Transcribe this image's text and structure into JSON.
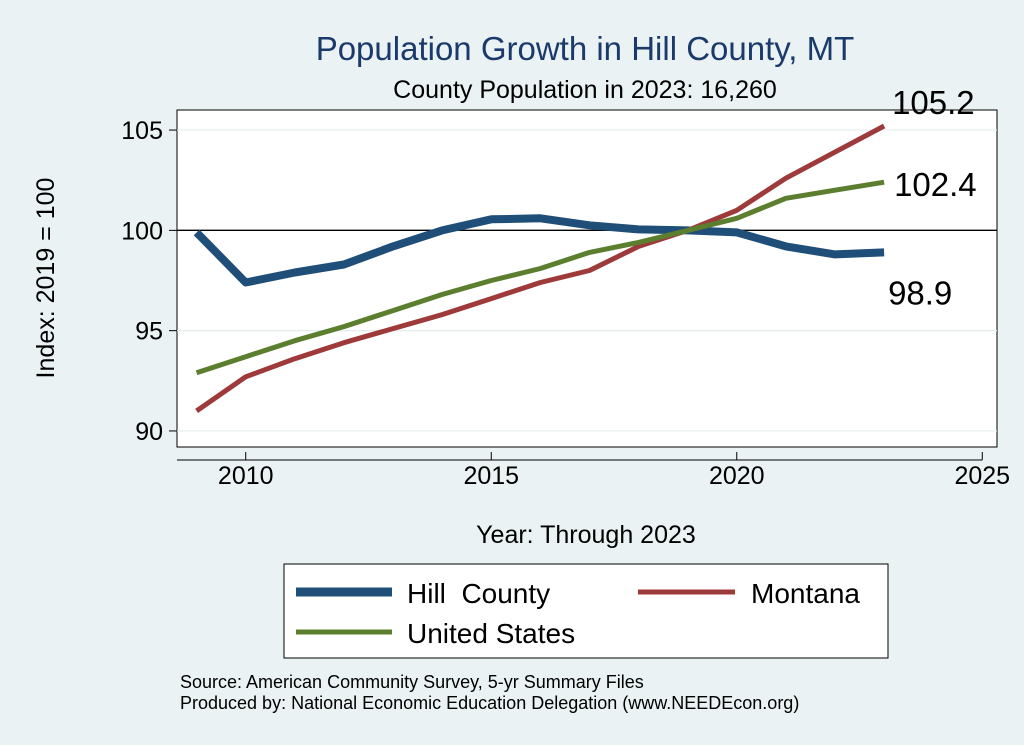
{
  "chart_data": {
    "type": "line",
    "title": "Population Growth in Hill County, MT",
    "subtitle": "County Population in 2023: 16,260",
    "xlabel": "Year: Through 2023",
    "ylabel": "Index: 2019 = 100",
    "xlim": [
      2008.6,
      2025.3
    ],
    "ylim": [
      89.2,
      106.0
    ],
    "xticks": [
      2010,
      2015,
      2020,
      2025
    ],
    "yticks": [
      90,
      95,
      100,
      105
    ],
    "reference_line": 100,
    "series": [
      {
        "name": "Hill County",
        "legend_label": "Hill  County",
        "color": "#1f4e79",
        "x": [
          2009,
          2010,
          2011,
          2012,
          2013,
          2014,
          2015,
          2016,
          2017,
          2018,
          2019,
          2020,
          2021,
          2022,
          2023
        ],
        "values": [
          99.9,
          97.4,
          97.9,
          98.3,
          99.2,
          100.0,
          100.55,
          100.6,
          100.25,
          100.05,
          100.0,
          99.9,
          99.2,
          98.8,
          98.9
        ],
        "end_label": "98.9"
      },
      {
        "name": "Montana",
        "legend_label": "Montana",
        "color": "#9e3a3a",
        "x": [
          2009,
          2010,
          2011,
          2012,
          2013,
          2014,
          2015,
          2016,
          2017,
          2018,
          2019,
          2020,
          2021,
          2022,
          2023
        ],
        "values": [
          91.0,
          92.7,
          93.6,
          94.4,
          95.1,
          95.8,
          96.6,
          97.4,
          98.0,
          99.2,
          100.0,
          101.0,
          102.6,
          103.9,
          105.2
        ],
        "end_label": "105.2"
      },
      {
        "name": "United States",
        "legend_label": "United States",
        "color": "#5b7f2e",
        "x": [
          2009,
          2010,
          2011,
          2012,
          2013,
          2014,
          2015,
          2016,
          2017,
          2018,
          2019,
          2020,
          2021,
          2022,
          2023
        ],
        "values": [
          92.9,
          93.7,
          94.5,
          95.2,
          96.0,
          96.8,
          97.5,
          98.1,
          98.9,
          99.4,
          100.0,
          100.6,
          101.6,
          102.0,
          102.4
        ],
        "end_label": "102.4"
      }
    ],
    "legend": {
      "position": "bottom",
      "entries": [
        "Hill  County",
        "Montana",
        "United States"
      ]
    }
  },
  "footer": {
    "source": "Source: American Community Survey, 5-yr Summary Files",
    "produced_by": "Produced by: National Economic Education Delegation (www.NEEDEcon.org)"
  }
}
